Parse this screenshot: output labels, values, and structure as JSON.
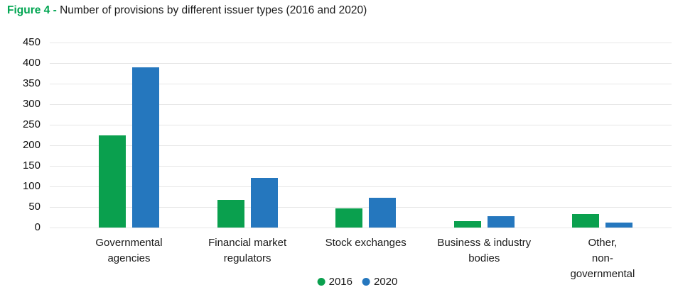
{
  "figure": {
    "label": "Figure 4 - ",
    "title": "Number of provisions by different issuer types (2016 and 2020)"
  },
  "colors": {
    "accent_green": "#00a551",
    "series_2016_green": "#0aa04e",
    "series_2020_blue": "#2577be",
    "gridline": "#e6e6e6",
    "text": "#1a1a1a"
  },
  "legend": {
    "items": [
      {
        "label": "2016",
        "marker": "circle-icon"
      },
      {
        "label": "2020",
        "marker": "circle-icon"
      }
    ]
  },
  "chart_data": {
    "type": "bar",
    "title": "Number of provisions by different issuer types (2016 and 2020)",
    "categories": [
      "Governmental\nagencies",
      "Financial market\nregulators",
      "Stock exchanges",
      "Business & industry\nbodies",
      "Other,\nnon-governmental"
    ],
    "series": [
      {
        "name": "2016",
        "color": "#0aa04e",
        "values": [
          225,
          68,
          47,
          16,
          32
        ]
      },
      {
        "name": "2020",
        "color": "#2577be",
        "values": [
          390,
          120,
          73,
          27,
          12
        ]
      }
    ],
    "xlabel": "",
    "ylabel": "",
    "ylim": [
      0,
      450
    ],
    "ytick_step": 50,
    "yticks": [
      0,
      50,
      100,
      150,
      200,
      250,
      300,
      350,
      400,
      450
    ],
    "grid": "horizontal",
    "legend_position": "bottom-center"
  }
}
